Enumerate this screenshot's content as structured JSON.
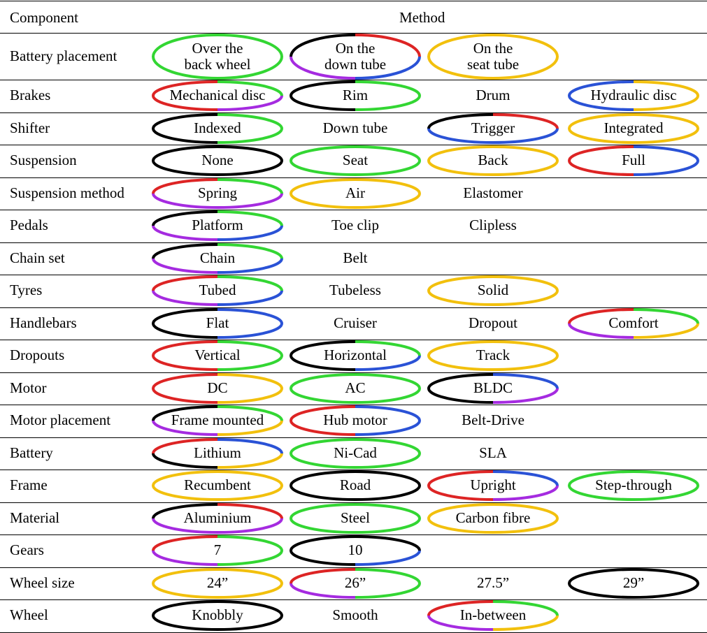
{
  "header": {
    "component": "Component",
    "method": "Method"
  },
  "colors": {
    "red": "#dd2424",
    "green": "#33d633",
    "blue": "#2a52d6",
    "purple": "#a52be0",
    "yellow": "#f2c00d",
    "black": "#000000"
  },
  "rows": [
    {
      "component": "Battery placement",
      "methods": [
        {
          "lines": [
            "Over the",
            "back wheel"
          ],
          "segs": [
            "green",
            "green",
            "green",
            "green"
          ]
        },
        {
          "lines": [
            "On the",
            "down tube"
          ],
          "segs": [
            "black",
            "red",
            "blue",
            "purple"
          ]
        },
        {
          "lines": [
            "On the",
            "seat tube"
          ],
          "segs": [
            "yellow",
            "yellow",
            "yellow",
            "yellow"
          ]
        }
      ]
    },
    {
      "component": "Brakes",
      "methods": [
        {
          "lines": [
            "Mechanical disc"
          ],
          "segs": [
            "red",
            "green",
            "purple",
            "red"
          ]
        },
        {
          "lines": [
            "Rim"
          ],
          "segs": [
            "black",
            "green",
            "green",
            "black"
          ]
        },
        {
          "lines": [
            "Drum"
          ],
          "segs": []
        },
        {
          "lines": [
            "Hydraulic disc"
          ],
          "segs": [
            "blue",
            "yellow",
            "yellow",
            "blue"
          ]
        }
      ]
    },
    {
      "component": "Shifter",
      "methods": [
        {
          "lines": [
            "Indexed"
          ],
          "segs": [
            "black",
            "green",
            "green",
            "black"
          ]
        },
        {
          "lines": [
            "Down tube"
          ],
          "segs": []
        },
        {
          "lines": [
            "Trigger"
          ],
          "segs": [
            "black",
            "red",
            "blue",
            "blue"
          ]
        },
        {
          "lines": [
            "Integrated"
          ],
          "segs": [
            "yellow",
            "yellow",
            "yellow",
            "yellow"
          ]
        }
      ]
    },
    {
      "component": "Suspension",
      "methods": [
        {
          "lines": [
            "None"
          ],
          "segs": [
            "black",
            "black",
            "black",
            "black"
          ]
        },
        {
          "lines": [
            "Seat"
          ],
          "segs": [
            "green",
            "green",
            "green",
            "green"
          ]
        },
        {
          "lines": [
            "Back"
          ],
          "segs": [
            "yellow",
            "yellow",
            "yellow",
            "yellow"
          ]
        },
        {
          "lines": [
            "Full"
          ],
          "segs": [
            "red",
            "blue",
            "blue",
            "red"
          ]
        }
      ]
    },
    {
      "component": "Suspension method",
      "methods": [
        {
          "lines": [
            "Spring"
          ],
          "segs": [
            "red",
            "green",
            "purple",
            "purple"
          ]
        },
        {
          "lines": [
            "Air"
          ],
          "segs": [
            "yellow",
            "yellow",
            "yellow",
            "yellow"
          ]
        },
        {
          "lines": [
            "Elastomer"
          ],
          "segs": []
        }
      ]
    },
    {
      "component": "Pedals",
      "methods": [
        {
          "lines": [
            "Platform"
          ],
          "segs": [
            "black",
            "green",
            "blue",
            "purple"
          ]
        },
        {
          "lines": [
            "Toe clip"
          ],
          "segs": []
        },
        {
          "lines": [
            "Clipless"
          ],
          "segs": []
        }
      ]
    },
    {
      "component": "Chain set",
      "methods": [
        {
          "lines": [
            "Chain"
          ],
          "segs": [
            "black",
            "green",
            "blue",
            "purple"
          ]
        },
        {
          "lines": [
            "Belt"
          ],
          "segs": []
        }
      ]
    },
    {
      "component": "Tyres",
      "methods": [
        {
          "lines": [
            "Tubed"
          ],
          "segs": [
            "red",
            "green",
            "blue",
            "purple"
          ]
        },
        {
          "lines": [
            "Tubeless"
          ],
          "segs": []
        },
        {
          "lines": [
            "Solid"
          ],
          "segs": [
            "yellow",
            "yellow",
            "yellow",
            "yellow"
          ]
        }
      ]
    },
    {
      "component": "Handlebars",
      "methods": [
        {
          "lines": [
            "Flat"
          ],
          "segs": [
            "black",
            "blue",
            "blue",
            "black"
          ]
        },
        {
          "lines": [
            "Cruiser"
          ],
          "segs": []
        },
        {
          "lines": [
            "Dropout"
          ],
          "segs": []
        },
        {
          "lines": [
            "Comfort"
          ],
          "segs": [
            "red",
            "green",
            "yellow",
            "purple"
          ]
        }
      ]
    },
    {
      "component": "Dropouts",
      "methods": [
        {
          "lines": [
            "Vertical"
          ],
          "segs": [
            "red",
            "green",
            "green",
            "red"
          ]
        },
        {
          "lines": [
            "Horizontal"
          ],
          "segs": [
            "black",
            "green",
            "blue",
            "black"
          ]
        },
        {
          "lines": [
            "Track"
          ],
          "segs": [
            "yellow",
            "yellow",
            "yellow",
            "yellow"
          ]
        }
      ]
    },
    {
      "component": "Motor",
      "methods": [
        {
          "lines": [
            "DC"
          ],
          "segs": [
            "red",
            "yellow",
            "yellow",
            "red"
          ]
        },
        {
          "lines": [
            "AC"
          ],
          "segs": [
            "green",
            "green",
            "green",
            "green"
          ]
        },
        {
          "lines": [
            "BLDC"
          ],
          "segs": [
            "black",
            "blue",
            "purple",
            "black"
          ]
        }
      ]
    },
    {
      "component": "Motor placement",
      "methods": [
        {
          "lines": [
            "Frame mounted"
          ],
          "segs": [
            "black",
            "green",
            "yellow",
            "purple"
          ]
        },
        {
          "lines": [
            "Hub motor"
          ],
          "segs": [
            "red",
            "blue",
            "blue",
            "red"
          ]
        },
        {
          "lines": [
            "Belt-Drive"
          ],
          "segs": []
        }
      ]
    },
    {
      "component": "Battery",
      "methods": [
        {
          "lines": [
            "Lithium"
          ],
          "segs": [
            "red",
            "blue",
            "yellow",
            "black"
          ]
        },
        {
          "lines": [
            "Ni-Cad"
          ],
          "segs": [
            "green",
            "green",
            "green",
            "green"
          ]
        },
        {
          "lines": [
            "SLA"
          ],
          "segs": []
        }
      ]
    },
    {
      "component": "Frame",
      "methods": [
        {
          "lines": [
            "Recumbent"
          ],
          "segs": [
            "yellow",
            "yellow",
            "yellow",
            "yellow"
          ]
        },
        {
          "lines": [
            "Road"
          ],
          "segs": [
            "black",
            "black",
            "black",
            "black"
          ]
        },
        {
          "lines": [
            "Upright"
          ],
          "segs": [
            "red",
            "blue",
            "purple",
            "red"
          ]
        },
        {
          "lines": [
            "Step-through"
          ],
          "segs": [
            "green",
            "green",
            "green",
            "green"
          ]
        }
      ]
    },
    {
      "component": "Material",
      "methods": [
        {
          "lines": [
            "Aluminium"
          ],
          "segs": [
            "black",
            "red",
            "purple",
            "purple"
          ]
        },
        {
          "lines": [
            "Steel"
          ],
          "segs": [
            "green",
            "green",
            "green",
            "green"
          ]
        },
        {
          "lines": [
            "Carbon fibre"
          ],
          "segs": [
            "yellow",
            "yellow",
            "yellow",
            "yellow"
          ]
        }
      ]
    },
    {
      "component": "Gears",
      "methods": [
        {
          "lines": [
            "7"
          ],
          "segs": [
            "red",
            "green",
            "green",
            "purple"
          ]
        },
        {
          "lines": [
            "10"
          ],
          "segs": [
            "black",
            "black",
            "blue",
            "black"
          ]
        }
      ]
    },
    {
      "component": "Wheel size",
      "methods": [
        {
          "lines": [
            "24”"
          ],
          "segs": [
            "yellow",
            "yellow",
            "yellow",
            "yellow"
          ]
        },
        {
          "lines": [
            "26”"
          ],
          "segs": [
            "red",
            "green",
            "green",
            "purple"
          ]
        },
        {
          "lines": [
            "27.5”"
          ],
          "segs": []
        },
        {
          "lines": [
            "29”"
          ],
          "segs": [
            "black",
            "black",
            "black",
            "black"
          ]
        }
      ]
    },
    {
      "component": "Wheel",
      "methods": [
        {
          "lines": [
            "Knobbly"
          ],
          "segs": [
            "black",
            "black",
            "black",
            "black"
          ]
        },
        {
          "lines": [
            "Smooth"
          ],
          "segs": []
        },
        {
          "lines": [
            "In-between"
          ],
          "segs": [
            "red",
            "green",
            "yellow",
            "purple"
          ]
        }
      ]
    }
  ]
}
